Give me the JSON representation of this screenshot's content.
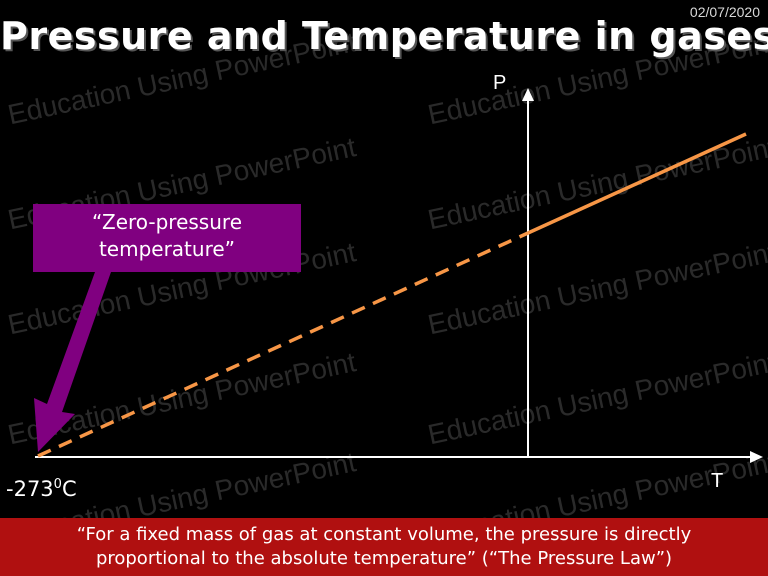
{
  "date": "02/07/2020",
  "title": "Pressure and Temperature in gases",
  "watermark": "Education Using PowerPoint",
  "callout": {
    "line1": "“Zero-pressure",
    "line2": "temperature”"
  },
  "axes": {
    "y_label": "P",
    "x_label": "T"
  },
  "zero_point": {
    "value": "-273",
    "superscript": "0",
    "unit": "C"
  },
  "footer": {
    "line1": "“For a fixed mass of gas at constant volume, the pressure is directly",
    "line2": "proportional to the absolute temperature” (“The Pressure Law”)"
  },
  "colors": {
    "background": "#000000",
    "line": "#f79646",
    "callout": "#800080",
    "footer": "#b01010"
  }
}
